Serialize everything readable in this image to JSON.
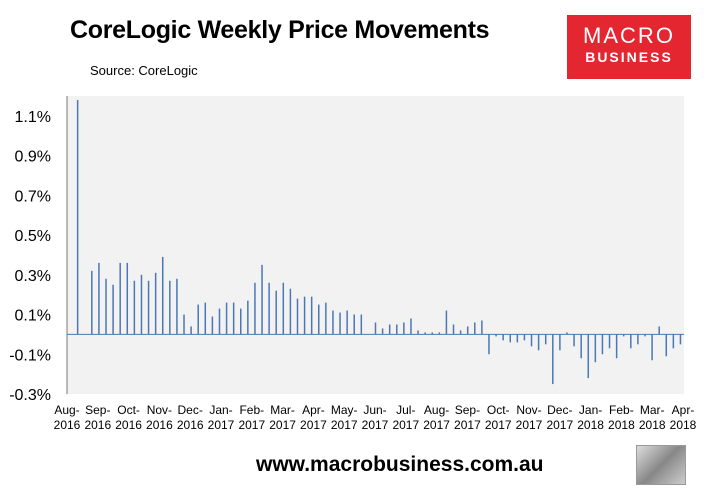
{
  "header": {
    "title": "CoreLogic Weekly Price Movements",
    "source": "Source: CoreLogic"
  },
  "logo": {
    "line1": "MACRO",
    "line2": "BUSINESS"
  },
  "footer": {
    "url": "www.macrobusiness.com.au"
  },
  "colors": {
    "bar": "#4a78b5",
    "plot_bg": "#f2f2f2",
    "logo_bg": "#e3262f"
  },
  "chart_data": {
    "type": "bar",
    "title": "CoreLogic Weekly Price Movements",
    "xlabel": "",
    "ylabel": "",
    "ylim": [
      -0.3,
      1.2
    ],
    "yticks": [
      -0.3,
      -0.1,
      0.1,
      0.3,
      0.5,
      0.7,
      0.9,
      1.1
    ],
    "ytick_labels": [
      "-0.3%",
      "-0.1%",
      "0.1%",
      "0.3%",
      "0.5%",
      "0.7%",
      "0.9%",
      "1.1%"
    ],
    "grid": false,
    "x_tick_labels": [
      [
        "Aug-",
        "2016"
      ],
      [
        "Sep-",
        "2016"
      ],
      [
        "Oct-",
        "2016"
      ],
      [
        "Nov-",
        "2016"
      ],
      [
        "Dec-",
        "2016"
      ],
      [
        "Jan-",
        "2017"
      ],
      [
        "Feb-",
        "2017"
      ],
      [
        "Mar-",
        "2017"
      ],
      [
        "Apr-",
        "2017"
      ],
      [
        "May-",
        "2017"
      ],
      [
        "Jun-",
        "2017"
      ],
      [
        "Jul-",
        "2017"
      ],
      [
        "Aug-",
        "2017"
      ],
      [
        "Sep-",
        "2017"
      ],
      [
        "Oct-",
        "2017"
      ],
      [
        "Nov-",
        "2017"
      ],
      [
        "Dec-",
        "2017"
      ],
      [
        "Jan-",
        "2018"
      ],
      [
        "Feb-",
        "2018"
      ],
      [
        "Mar-",
        "2018"
      ],
      [
        "Apr-",
        "2018"
      ]
    ],
    "values": [
      0,
      1.18,
      0,
      0.32,
      0.36,
      0.28,
      0.25,
      0.36,
      0.36,
      0.27,
      0.3,
      0.27,
      0.31,
      0.39,
      0.27,
      0.28,
      0.1,
      0.04,
      0.15,
      0.16,
      0.09,
      0.13,
      0.16,
      0.16,
      0.13,
      0.17,
      0.26,
      0.35,
      0.26,
      0.22,
      0.26,
      0.23,
      0.18,
      0.19,
      0.19,
      0.15,
      0.16,
      0.12,
      0.11,
      0.12,
      0.1,
      0.1,
      0,
      0.06,
      0.03,
      0.05,
      0.05,
      0.06,
      0.08,
      0.02,
      0.01,
      0.01,
      0.01,
      0.12,
      0.05,
      0.02,
      0.04,
      0.06,
      0.07,
      -0.1,
      -0.01,
      -0.03,
      -0.04,
      -0.04,
      -0.03,
      -0.06,
      -0.08,
      -0.05,
      -0.25,
      -0.08,
      0.01,
      -0.06,
      -0.12,
      -0.22,
      -0.14,
      -0.1,
      -0.07,
      -0.12,
      -0.01,
      -0.07,
      -0.05,
      -0.01,
      -0.13,
      0.04,
      -0.11,
      -0.07,
      -0.05
    ]
  }
}
